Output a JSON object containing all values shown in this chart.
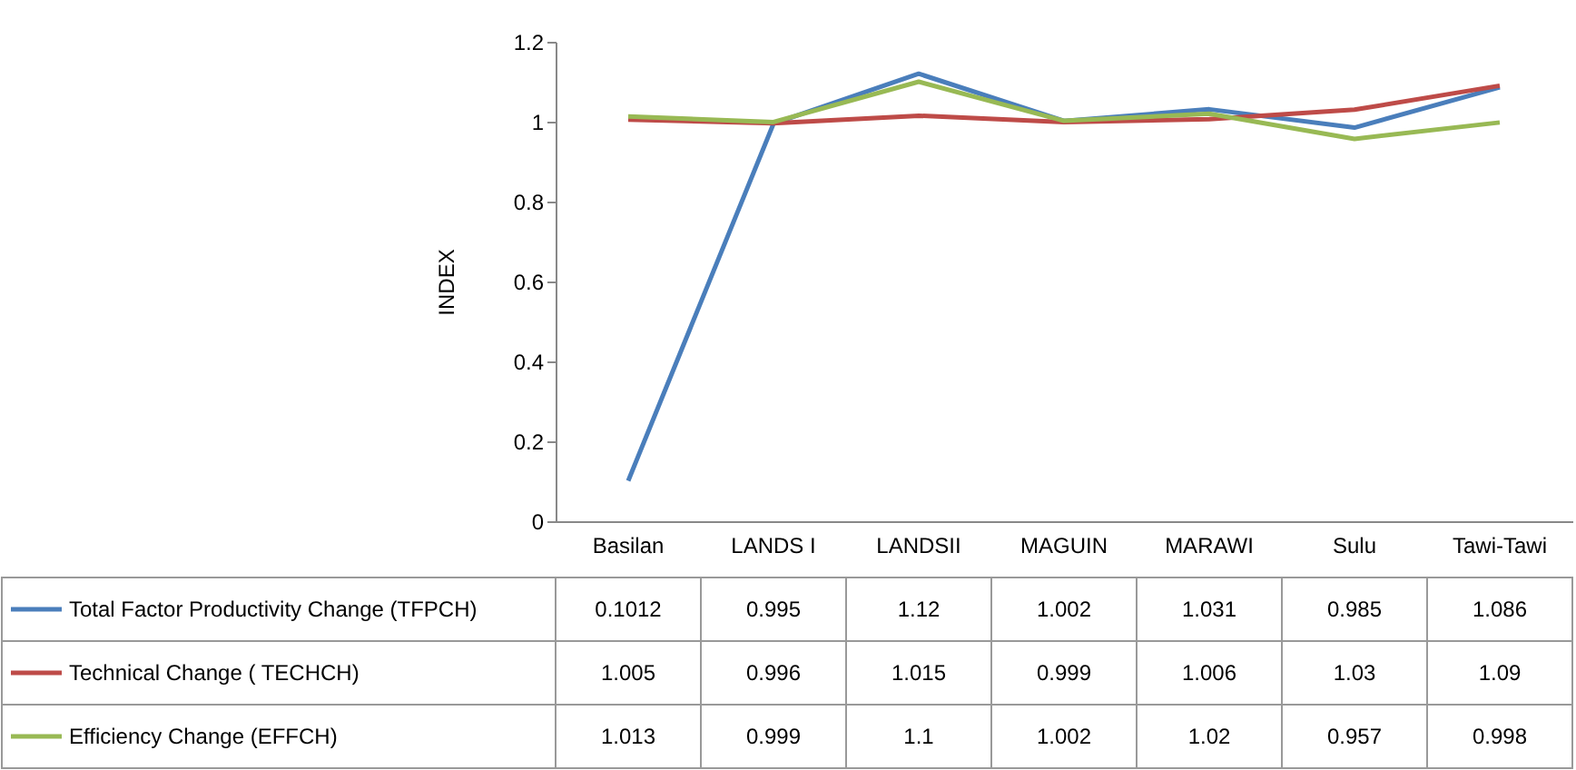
{
  "chart_data": {
    "type": "line",
    "ylabel": "INDEX",
    "categories": [
      "Basilan",
      "LANDS I",
      "LANDSII",
      "MAGUIN",
      "MARAWI",
      "Sulu",
      "Tawi-Tawi"
    ],
    "series": [
      {
        "name": "Total Factor Productivity  Change (TFPCH)",
        "color": "#4a7ebb",
        "values": [
          0.1012,
          0.995,
          1.12,
          1.002,
          1.031,
          0.985,
          1.086
        ]
      },
      {
        "name": "Technical Change ( TECHCH)",
        "color": "#be4b48",
        "values": [
          1.005,
          0.996,
          1.015,
          0.999,
          1.006,
          1.03,
          1.09
        ]
      },
      {
        "name": "Efficiency  Change (EFFCH)",
        "color": "#98b954",
        "values": [
          1.013,
          0.999,
          1.1,
          1.002,
          1.02,
          0.957,
          0.998
        ]
      }
    ],
    "ylim": [
      0,
      1.2
    ],
    "yticks": [
      0,
      0.2,
      0.4,
      0.6,
      0.8,
      1,
      1.2
    ],
    "grid": false,
    "legend": "bottom",
    "data_labels": true,
    "marker": "none",
    "line_style": "solid"
  }
}
